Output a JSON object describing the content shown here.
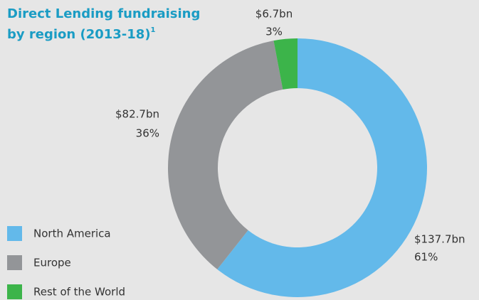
{
  "chart_data": {
    "type": "donut",
    "title_lines": [
      "Direct Lending fundraising",
      "by region (2013-18)"
    ],
    "title_footnote": "1",
    "categories": [
      "North America",
      "Europe",
      "Rest of the World"
    ],
    "values": [
      137.7,
      82.7,
      6.7
    ],
    "value_labels": [
      "$137.7bn",
      "$82.7bn",
      "$6.7bn"
    ],
    "percent_labels": [
      "61%",
      "36%",
      "3%"
    ],
    "colors": [
      "#63b9ea",
      "#939598",
      "#3cb44a"
    ],
    "legend": "bottom-left"
  }
}
